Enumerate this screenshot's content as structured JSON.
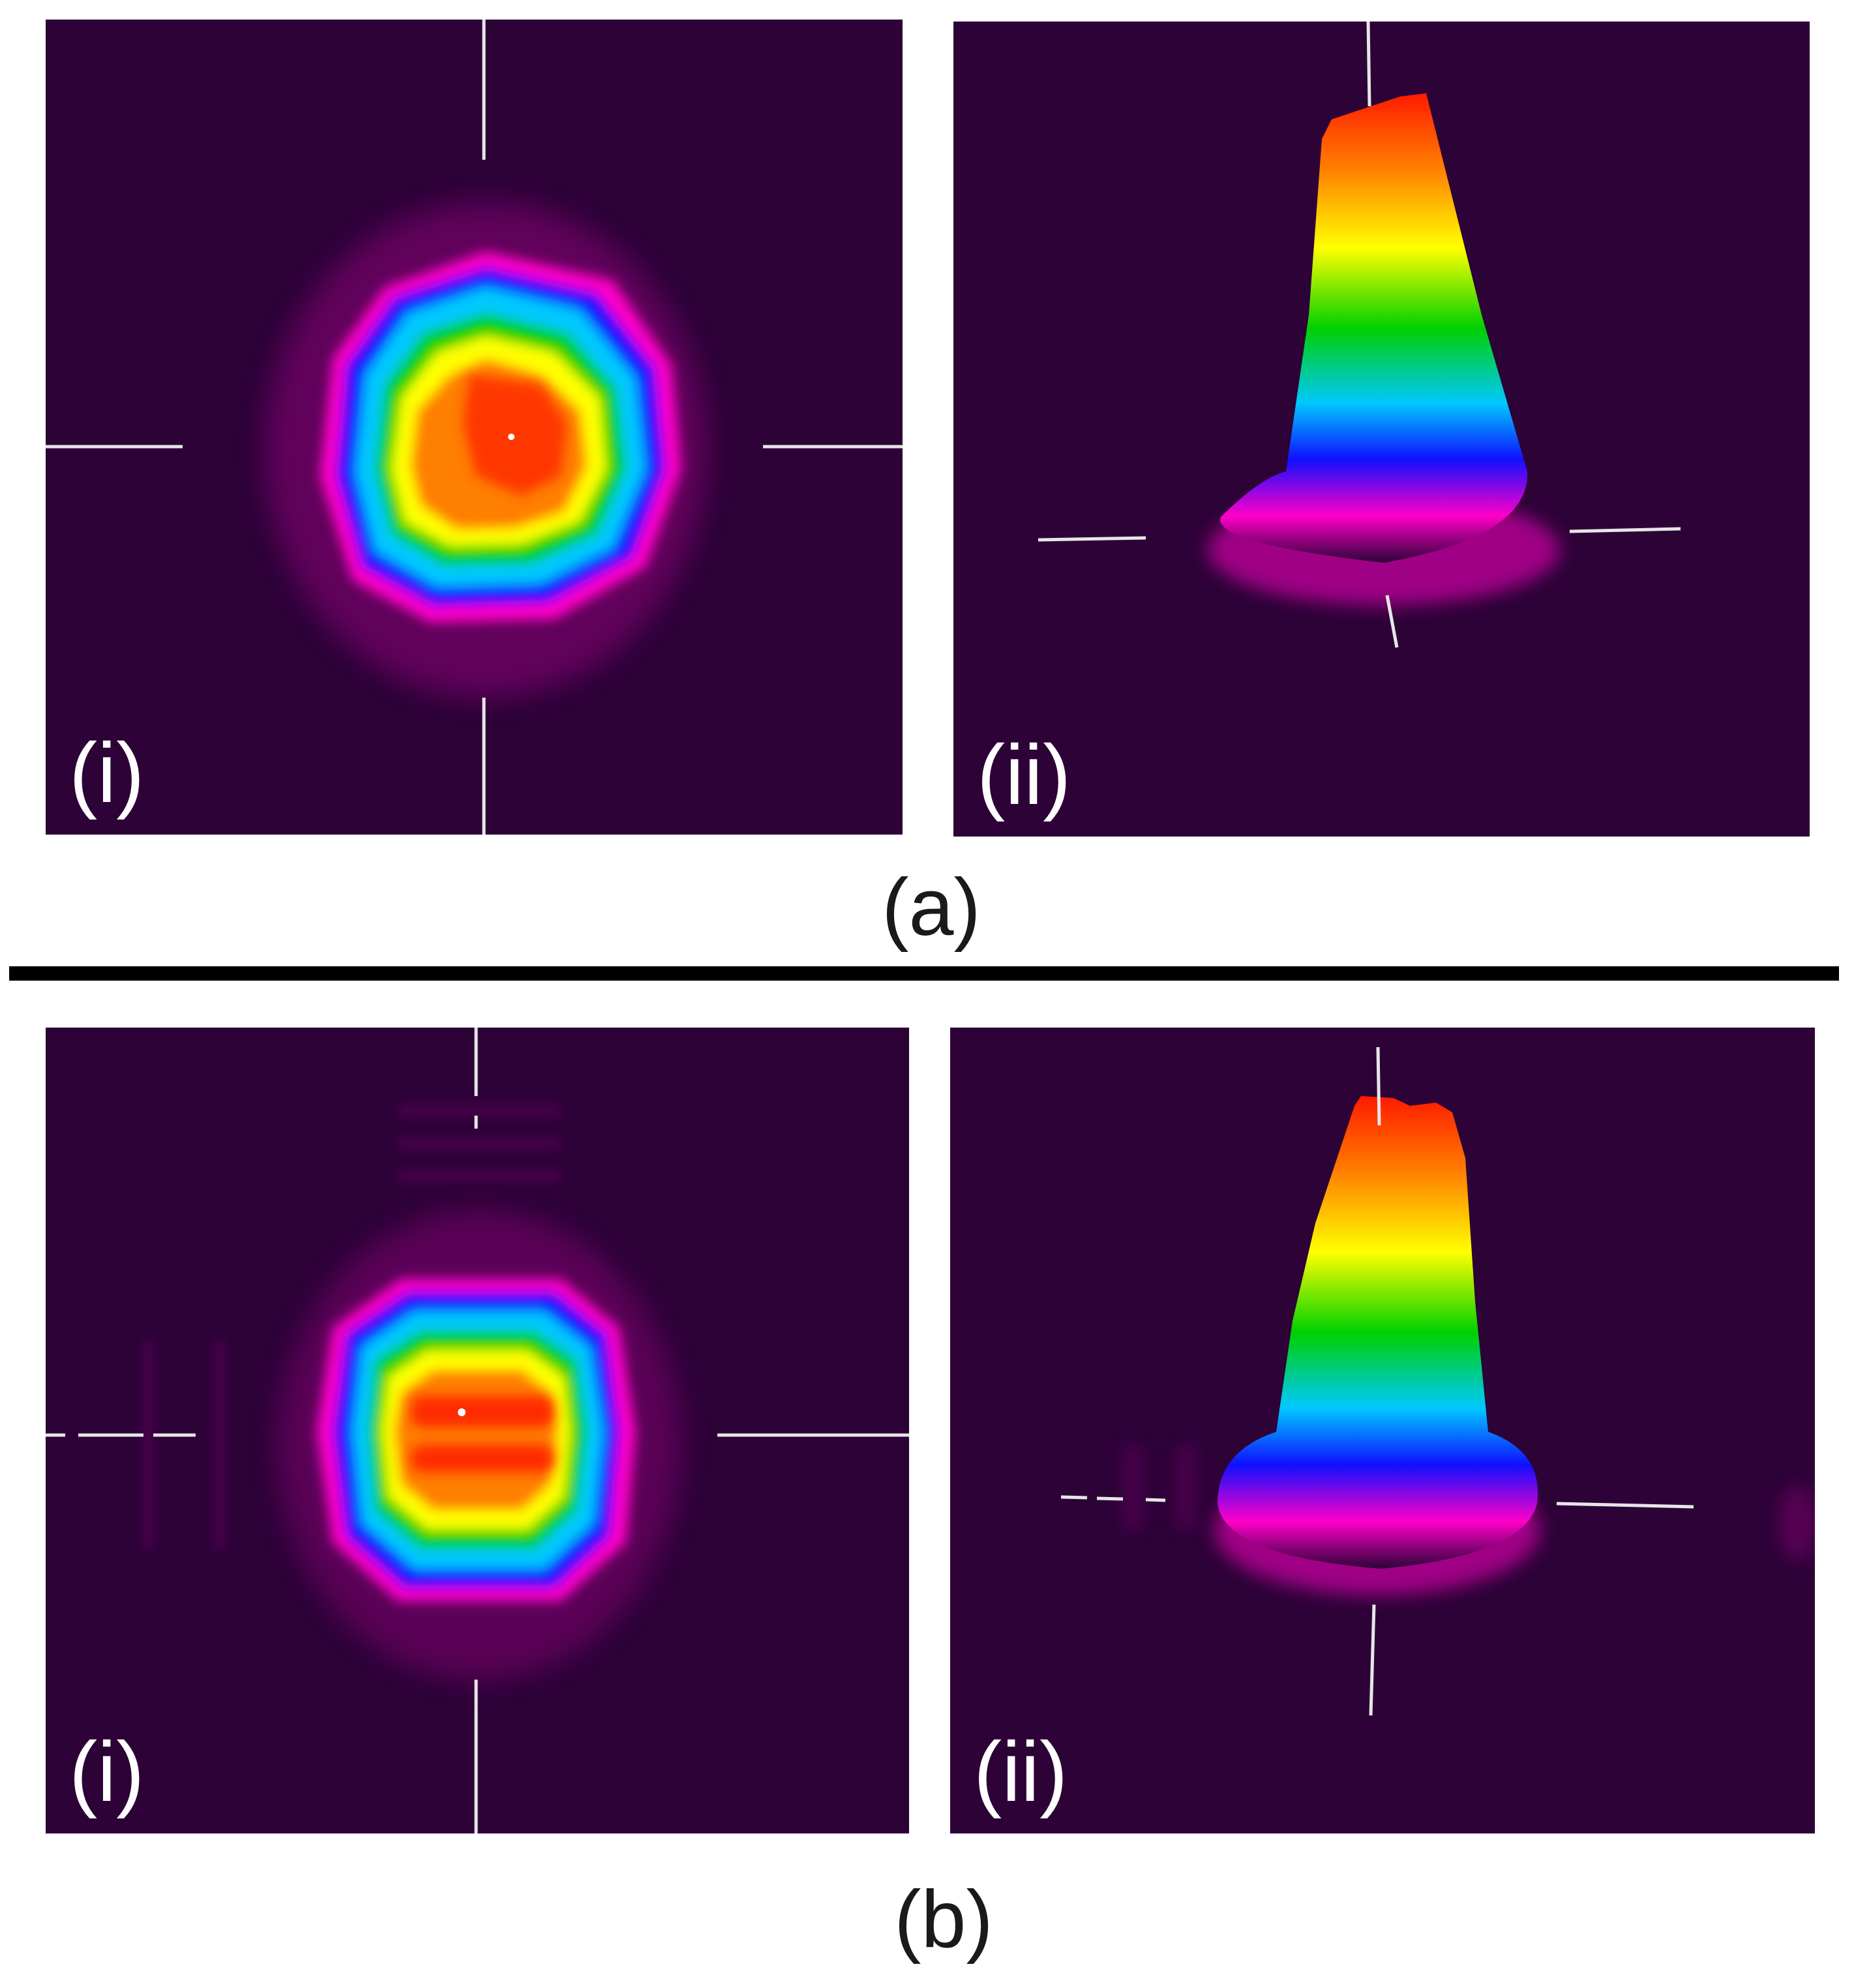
{
  "figure": {
    "groups": [
      {
        "caption": "(a)",
        "panels": [
          {
            "label": "(i)",
            "view": "2d-top"
          },
          {
            "label": "(ii)",
            "view": "3d-profile"
          }
        ]
      },
      {
        "caption": "(b)",
        "panels": [
          {
            "label": "(i)",
            "view": "2d-top"
          },
          {
            "label": "(ii)",
            "view": "3d-profile"
          }
        ]
      }
    ]
  },
  "colors": {
    "background": "#2c0237",
    "crosshair": "#e6e6e6",
    "divider": "#000000",
    "colormap": [
      "#ff1a00",
      "#ff7f00",
      "#ffff00",
      "#00d000",
      "#00c8ff",
      "#1010ff",
      "#ff00c8",
      "#2c0237"
    ]
  }
}
